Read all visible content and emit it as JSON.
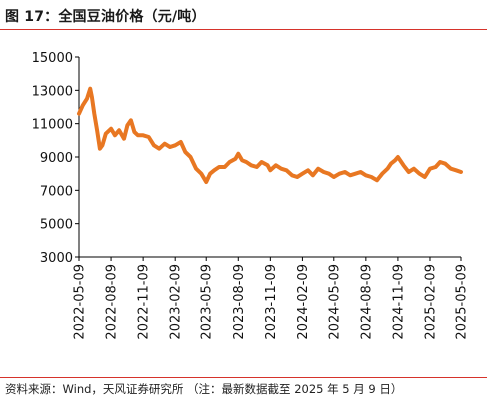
{
  "header": {
    "title": "图 17：全国豆油价格（元/吨）"
  },
  "footer": {
    "source": "资料来源：Wind，天风证券研究所 （注：最新数据截至 2025 年 5 月 9 日）"
  },
  "colors": {
    "line": "#e87722",
    "rule": "#d6332b",
    "axis": "#000000"
  },
  "chart_data": {
    "type": "line",
    "title": "全国豆油价格（元/吨）",
    "xlabel": "",
    "ylabel": "",
    "ylim": [
      3000,
      15000
    ],
    "yticks": [
      "15000",
      "13000",
      "11000",
      "9000",
      "7000",
      "5000",
      "3000"
    ],
    "xticks": [
      "2022-05-09",
      "2022-08-09",
      "2022-11-09",
      "2023-02-09",
      "2023-05-09",
      "2023-08-09",
      "2023-11-09",
      "2024-02-09",
      "2024-05-09",
      "2024-08-09",
      "2024-11-09",
      "2025-02-09",
      "2025-05-09"
    ],
    "grid": false,
    "legend": "none",
    "series": [
      {
        "x": [
          "2022-05-09",
          "2022-05-20",
          "2022-06-01",
          "2022-06-10",
          "2022-06-15",
          "2022-06-22",
          "2022-06-30",
          "2022-07-08",
          "2022-07-15",
          "2022-07-25",
          "2022-08-09",
          "2022-08-20",
          "2022-09-01",
          "2022-09-15",
          "2022-09-25",
          "2022-10-05",
          "2022-10-15",
          "2022-10-25",
          "2022-11-09",
          "2022-11-25",
          "2022-12-10",
          "2022-12-25",
          "2023-01-10",
          "2023-01-25",
          "2023-02-09",
          "2023-02-25",
          "2023-03-10",
          "2023-03-25",
          "2023-04-10",
          "2023-04-25",
          "2023-05-09",
          "2023-05-20",
          "2023-06-01",
          "2023-06-15",
          "2023-07-01",
          "2023-07-15",
          "2023-08-01",
          "2023-08-09",
          "2023-08-20",
          "2023-09-01",
          "2023-09-15",
          "2023-10-01",
          "2023-10-15",
          "2023-11-01",
          "2023-11-09",
          "2023-11-25",
          "2023-12-10",
          "2023-12-25",
          "2024-01-10",
          "2024-01-25",
          "2024-02-09",
          "2024-02-25",
          "2024-03-10",
          "2024-03-25",
          "2024-04-10",
          "2024-04-25",
          "2024-05-09",
          "2024-05-25",
          "2024-06-10",
          "2024-06-25",
          "2024-07-10",
          "2024-07-25",
          "2024-08-09",
          "2024-08-25",
          "2024-09-10",
          "2024-09-25",
          "2024-10-10",
          "2024-10-20",
          "2024-11-01",
          "2024-11-09",
          "2024-11-25",
          "2024-12-10",
          "2024-12-25",
          "2025-01-10",
          "2025-01-25",
          "2025-02-09",
          "2025-02-25",
          "2025-03-10",
          "2025-03-25",
          "2025-04-10",
          "2025-04-25",
          "2025-05-09"
        ],
        "values": [
          11600,
          12100,
          12500,
          13100,
          12600,
          11600,
          10600,
          9500,
          9700,
          10400,
          10700,
          10300,
          10600,
          10100,
          10900,
          11200,
          10500,
          10300,
          10300,
          10200,
          9700,
          9500,
          9800,
          9600,
          9700,
          9900,
          9300,
          9000,
          8300,
          8000,
          7500,
          8000,
          8200,
          8400,
          8400,
          8700,
          8900,
          9200,
          8800,
          8700,
          8500,
          8400,
          8700,
          8500,
          8200,
          8500,
          8300,
          8200,
          7900,
          7800,
          8000,
          8200,
          7900,
          8300,
          8100,
          8000,
          7800,
          8000,
          8100,
          7900,
          8000,
          8100,
          7900,
          7800,
          7600,
          8000,
          8300,
          8600,
          8800,
          9000,
          8500,
          8100,
          8300,
          8000,
          7800,
          8300,
          8400,
          8700,
          8600,
          8300,
          8200,
          8100
        ]
      }
    ]
  }
}
